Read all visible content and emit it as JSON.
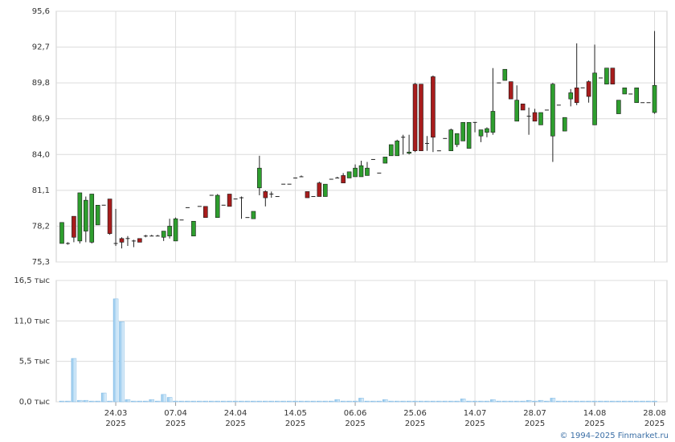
{
  "chart_data": [
    {
      "type": "candlestick",
      "up_color": "#2e9e2e",
      "down_color": "#a81c1c",
      "doji_color": "#222222",
      "grid": true,
      "ylim": [
        75.3,
        95.6
      ],
      "yticks": [
        {
          "value": 75.3,
          "label": "75,3"
        },
        {
          "value": 78.2,
          "label": "78,2"
        },
        {
          "value": 81.1,
          "label": "81,1"
        },
        {
          "value": 84.0,
          "label": "84,0"
        },
        {
          "value": 86.9,
          "label": "86,9"
        },
        {
          "value": 89.8,
          "label": "89,8"
        },
        {
          "value": 92.7,
          "label": "92,7"
        },
        {
          "value": 95.6,
          "label": "95,6"
        }
      ],
      "open": [
        76.8,
        76.8,
        79.0,
        77.0,
        77.8,
        76.9,
        78.3,
        79.9,
        80.4,
        76.8,
        77.2,
        77.2,
        77.0,
        77.2,
        77.4,
        77.4,
        77.4,
        77.3,
        77.4,
        77.0,
        78.7,
        79.7,
        77.4,
        79.8,
        79.8,
        80.7,
        78.9,
        79.9,
        80.8,
        80.4,
        80.5,
        78.9,
        78.8,
        81.3,
        81.0,
        80.8,
        80.6,
        81.6,
        81.6,
        82.1,
        82.2,
        81.0,
        80.6,
        81.7,
        80.6,
        82.0,
        82.1,
        82.3,
        82.1,
        82.2,
        82.2,
        82.3,
        83.6,
        82.5,
        83.3,
        83.9,
        83.9,
        85.4,
        84.1,
        89.7,
        89.7,
        84.9,
        90.3,
        84.3,
        85.3,
        84.3,
        84.8,
        85.1,
        84.5,
        86.6,
        85.5,
        85.8,
        85.8,
        89.8,
        90.0,
        89.9,
        86.7,
        88.1,
        87.1,
        87.4,
        86.4,
        87.6,
        85.5,
        88.0,
        85.9,
        88.5,
        89.4,
        89.4,
        89.9,
        86.4,
        90.2,
        89.7,
        91.0,
        87.3,
        88.9,
        88.9,
        88.2,
        88.2,
        88.2,
        87.4
      ],
      "high": [
        78.5,
        76.9,
        79.0,
        80.9,
        80.6,
        80.8,
        79.9,
        79.9,
        80.4,
        79.6,
        77.3,
        77.4,
        77.1,
        77.2,
        77.5,
        77.5,
        77.5,
        77.8,
        78.8,
        78.9,
        78.7,
        79.7,
        78.6,
        79.8,
        79.8,
        80.7,
        80.8,
        79.9,
        80.8,
        80.4,
        80.6,
        78.9,
        79.4,
        83.9,
        81.1,
        81.0,
        80.6,
        81.6,
        81.6,
        82.1,
        82.3,
        81.0,
        80.6,
        81.8,
        81.6,
        82.0,
        82.2,
        82.5,
        82.6,
        83.2,
        83.5,
        83.4,
        83.6,
        82.5,
        83.8,
        84.8,
        85.2,
        85.6,
        85.6,
        89.8,
        89.7,
        85.5,
        90.4,
        84.3,
        85.3,
        86.1,
        85.7,
        86.6,
        86.6,
        86.6,
        86.0,
        86.2,
        91.0,
        89.8,
        90.9,
        89.9,
        89.6,
        88.1,
        87.8,
        87.7,
        87.4,
        87.6,
        89.8,
        88.0,
        87.0,
        89.3,
        93.0,
        89.4,
        90.0,
        92.9,
        90.2,
        91.0,
        91.0,
        88.4,
        89.4,
        88.9,
        89.4,
        88.2,
        88.2,
        94.0
      ],
      "low": [
        76.8,
        76.7,
        76.9,
        76.8,
        76.9,
        76.8,
        78.3,
        79.9,
        77.5,
        76.6,
        76.4,
        76.6,
        76.5,
        76.9,
        77.3,
        77.4,
        77.4,
        77.0,
        77.2,
        77.0,
        78.7,
        79.7,
        77.4,
        79.8,
        78.9,
        80.7,
        78.9,
        79.9,
        79.8,
        80.4,
        78.8,
        78.9,
        78.8,
        80.7,
        79.8,
        80.5,
        80.6,
        81.6,
        81.6,
        82.1,
        82.2,
        80.5,
        80.6,
        80.6,
        80.6,
        82.0,
        82.1,
        81.7,
        82.1,
        82.2,
        82.2,
        82.3,
        83.6,
        82.5,
        83.3,
        83.9,
        83.9,
        84.0,
        84.0,
        84.2,
        84.3,
        84.3,
        84.2,
        84.3,
        85.3,
        84.3,
        84.6,
        85.1,
        84.5,
        85.8,
        85.0,
        85.4,
        85.6,
        89.8,
        90.0,
        88.5,
        86.7,
        87.6,
        85.6,
        86.7,
        86.4,
        87.6,
        83.4,
        88.0,
        85.9,
        87.9,
        88.0,
        89.4,
        88.2,
        86.4,
        90.2,
        89.7,
        89.7,
        87.3,
        88.9,
        88.9,
        88.2,
        88.2,
        88.2,
        87.3
      ],
      "close": [
        78.5,
        76.8,
        77.3,
        80.9,
        80.3,
        80.8,
        79.9,
        79.9,
        77.6,
        76.8,
        76.9,
        77.2,
        77.0,
        76.9,
        77.4,
        77.4,
        77.4,
        77.8,
        78.2,
        78.8,
        78.7,
        79.7,
        78.6,
        79.8,
        78.9,
        80.7,
        80.7,
        79.9,
        79.8,
        80.4,
        80.5,
        78.9,
        79.4,
        82.9,
        80.5,
        80.8,
        80.6,
        81.6,
        81.6,
        82.1,
        82.2,
        80.5,
        80.6,
        80.6,
        81.6,
        82.0,
        82.1,
        81.7,
        82.6,
        82.9,
        83.1,
        82.9,
        83.6,
        82.5,
        83.8,
        84.8,
        85.1,
        85.4,
        84.2,
        84.3,
        84.3,
        84.9,
        85.4,
        84.3,
        85.3,
        86.0,
        85.7,
        86.6,
        86.6,
        86.6,
        86.0,
        86.1,
        87.5,
        89.8,
        90.9,
        88.5,
        88.4,
        87.6,
        87.1,
        86.7,
        87.4,
        87.6,
        89.7,
        88.0,
        87.0,
        89.0,
        88.2,
        89.4,
        88.7,
        90.6,
        90.2,
        91.0,
        89.7,
        88.4,
        89.4,
        88.9,
        89.4,
        88.2,
        88.2,
        89.6
      ]
    },
    {
      "type": "bar",
      "color": "#8ec5ec",
      "grid": true,
      "ylim": [
        0,
        16.5
      ],
      "yticks": [
        {
          "value": 0,
          "label": "0,0 тыс"
        },
        {
          "value": 5.5,
          "label": "5,5 тыс"
        },
        {
          "value": 11,
          "label": "11,0 тыс"
        },
        {
          "value": 16.5,
          "label": "16,5 тыс"
        }
      ],
      "categories": [
        null,
        null,
        null,
        null,
        null,
        null,
        null,
        null,
        null,
        [
          "24.03",
          "2025"
        ],
        null,
        null,
        null,
        null,
        null,
        null,
        null,
        null,
        null,
        [
          "07.04",
          "2025"
        ],
        null,
        null,
        null,
        null,
        null,
        null,
        null,
        null,
        null,
        [
          "24.04",
          "2025"
        ],
        null,
        null,
        null,
        null,
        null,
        null,
        null,
        null,
        null,
        [
          "14.05",
          "2025"
        ],
        null,
        null,
        null,
        null,
        null,
        null,
        null,
        null,
        null,
        [
          "06.06",
          "2025"
        ],
        null,
        null,
        null,
        null,
        null,
        null,
        null,
        null,
        null,
        [
          "25.06",
          "2025"
        ],
        null,
        null,
        null,
        null,
        null,
        null,
        null,
        null,
        null,
        [
          "14.07",
          "2025"
        ],
        null,
        null,
        null,
        null,
        null,
        null,
        null,
        null,
        null,
        [
          "28.07",
          "2025"
        ],
        null,
        null,
        null,
        null,
        null,
        null,
        null,
        null,
        null,
        [
          "14.08",
          "2025"
        ],
        null,
        null,
        null,
        null,
        null,
        null,
        null,
        null,
        null,
        [
          "28.08",
          "2025"
        ]
      ],
      "values": [
        0.1,
        0.1,
        5.9,
        0.2,
        0.2,
        0.1,
        0.1,
        1.2,
        0.1,
        14.0,
        10.9,
        0.3,
        0.1,
        0.1,
        0.1,
        0.3,
        0.1,
        1.0,
        0.6,
        0.1,
        0.1,
        0.1,
        0.1,
        0.1,
        0.1,
        0.1,
        0.1,
        0.1,
        0.1,
        0.1,
        0.1,
        0.1,
        0.1,
        0.1,
        0.1,
        0.1,
        0.1,
        0.1,
        0.1,
        0.1,
        0.1,
        0.1,
        0.1,
        0.1,
        0.1,
        0.1,
        0.3,
        0.1,
        0.1,
        0.1,
        0.5,
        0.1,
        0.1,
        0.1,
        0.3,
        0.1,
        0.1,
        0.1,
        0.1,
        0.1,
        0.1,
        0.1,
        0.1,
        0.1,
        0.1,
        0.1,
        0.1,
        0.4,
        0.1,
        0.1,
        0.1,
        0.1,
        0.3,
        0.1,
        0.1,
        0.1,
        0.1,
        0.1,
        0.2,
        0.1,
        0.2,
        0.1,
        0.5,
        0.1,
        0.1,
        0.1,
        0.1,
        0.1,
        0.1,
        0.1,
        0.1,
        0.1,
        0.1,
        0.1,
        0.1,
        0.1,
        0.1,
        0.1,
        0.1,
        0.1
      ]
    }
  ],
  "copyright": "© 1994–2025 Finmarket.ru"
}
